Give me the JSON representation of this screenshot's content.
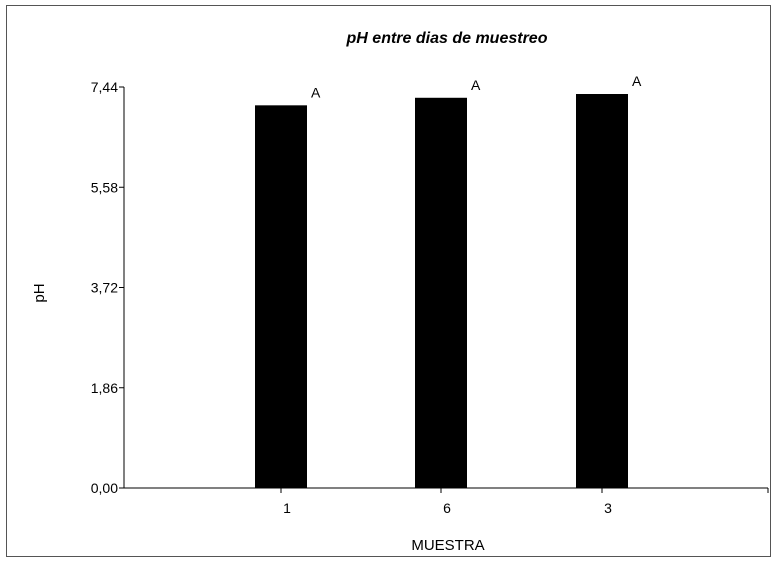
{
  "chart_data": {
    "type": "bar",
    "title": "pH entre dias de muestreo",
    "xlabel": "MUESTRA",
    "ylabel": "pH",
    "categories": [
      "1",
      "6",
      "3"
    ],
    "values": [
      7.1,
      7.24,
      7.31
    ],
    "data_labels": [
      "A",
      "A",
      "A"
    ],
    "yticks": [
      "0,00",
      "1,86",
      "3,72",
      "5,58",
      "7,44"
    ],
    "ytick_values": [
      0,
      1.86,
      3.72,
      5.58,
      7.44
    ],
    "ylim": [
      0,
      7.44
    ],
    "bar_color": "#000000",
    "grid": false,
    "legend": "none"
  }
}
